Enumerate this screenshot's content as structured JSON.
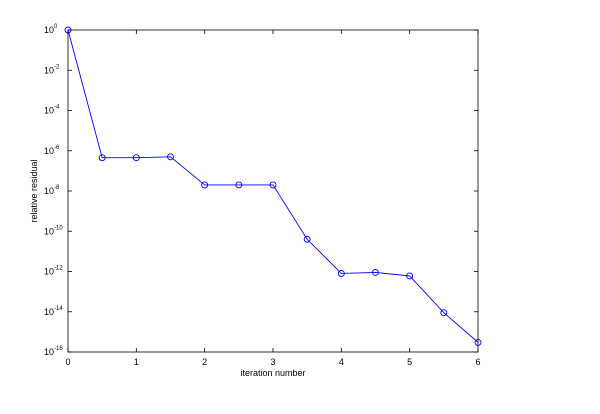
{
  "chart_data": {
    "type": "line",
    "title": "",
    "xlabel": "iteration number",
    "ylabel": "relative residual",
    "x": [
      0,
      0.5,
      1,
      1.5,
      2,
      2.5,
      3,
      3.5,
      4,
      4.5,
      5,
      5.5,
      6
    ],
    "series": [
      {
        "values": [
          1,
          4.5e-07,
          4.5e-07,
          5e-07,
          2e-08,
          2e-08,
          2e-08,
          4e-11,
          8e-13,
          9e-13,
          6e-13,
          9e-15,
          3e-16
        ],
        "color": "#0000ff",
        "marker": "circle"
      }
    ],
    "xlim": [
      0,
      6
    ],
    "ylim": [
      1e-16,
      1
    ],
    "yscale": "log",
    "grid": false,
    "xticks": [
      "0",
      "1",
      "2",
      "3",
      "4",
      "5",
      "6"
    ],
    "yticks": [
      {
        "base": "10",
        "exp": "0"
      },
      {
        "base": "10",
        "exp": "-2"
      },
      {
        "base": "10",
        "exp": "-4"
      },
      {
        "base": "10",
        "exp": "-6"
      },
      {
        "base": "10",
        "exp": "-8"
      },
      {
        "base": "10",
        "exp": "-10"
      },
      {
        "base": "10",
        "exp": "-12"
      },
      {
        "base": "10",
        "exp": "-14"
      },
      {
        "base": "10",
        "exp": "-16"
      }
    ]
  }
}
